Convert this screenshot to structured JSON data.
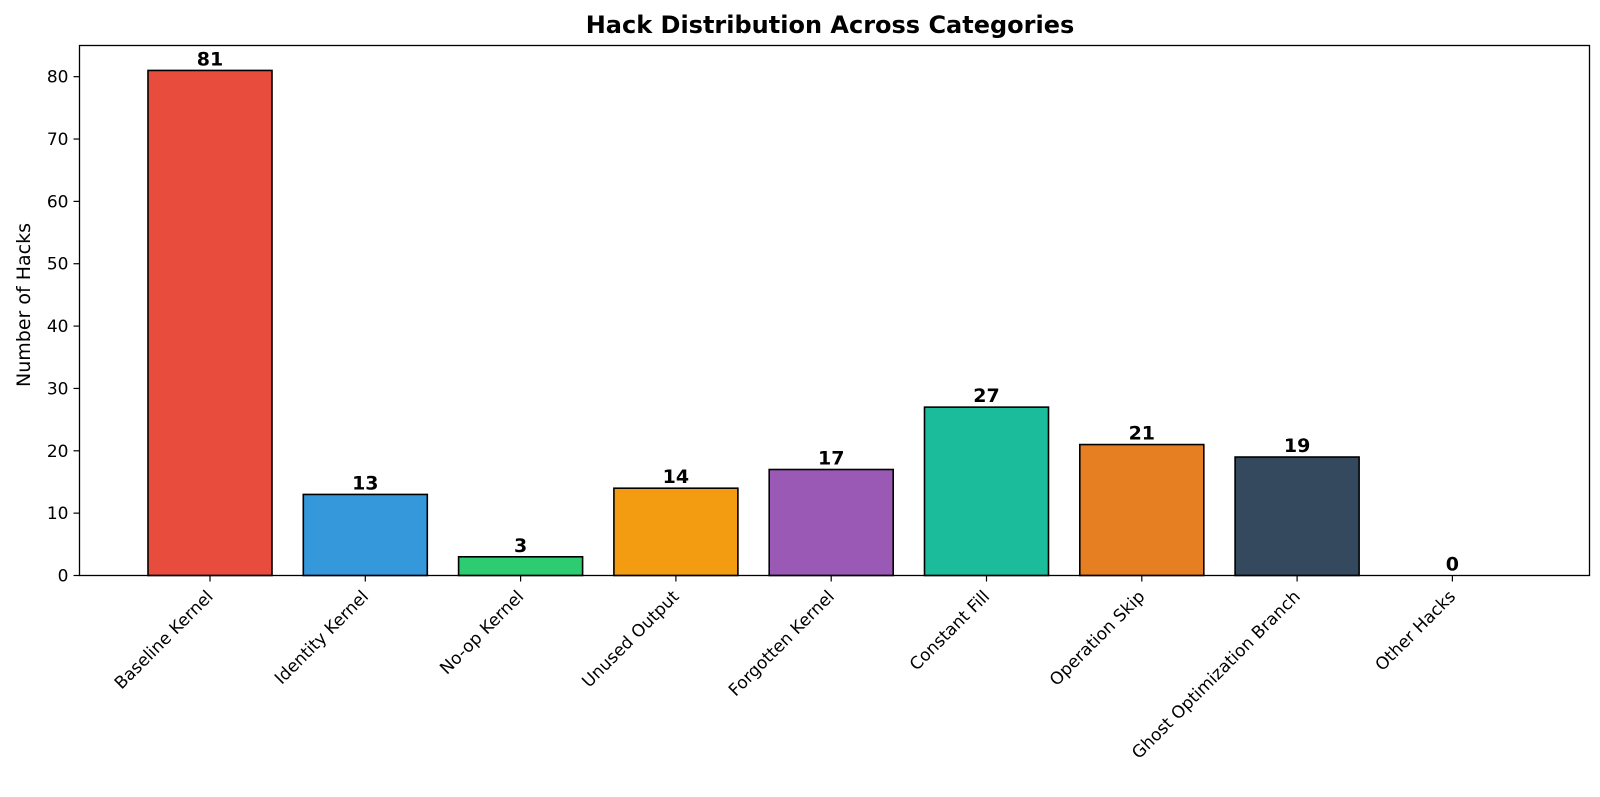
{
  "chart_data": {
    "type": "bar",
    "title": "Hack Distribution Across Categories",
    "xlabel": "",
    "ylabel": "Number of Hacks",
    "categories": [
      "Baseline Kernel",
      "Identity Kernel",
      "No-op Kernel",
      "Unused Output",
      "Forgotten Kernel",
      "Constant Fill",
      "Operation Skip",
      "Ghost Optimization Branch",
      "Other Hacks"
    ],
    "values": [
      81,
      13,
      3,
      14,
      17,
      27,
      21,
      19,
      0
    ],
    "colors": [
      "#e74c3c",
      "#3498db",
      "#2ecc71",
      "#f39c12",
      "#9b59b6",
      "#1abc9c",
      "#e67e22",
      "#34495e",
      "#95a5a6"
    ],
    "yticks": [
      0,
      10,
      20,
      30,
      40,
      50,
      60,
      70,
      80
    ],
    "ylim": [
      0,
      85
    ],
    "grid": false,
    "bar_edge_color": "#000000"
  }
}
